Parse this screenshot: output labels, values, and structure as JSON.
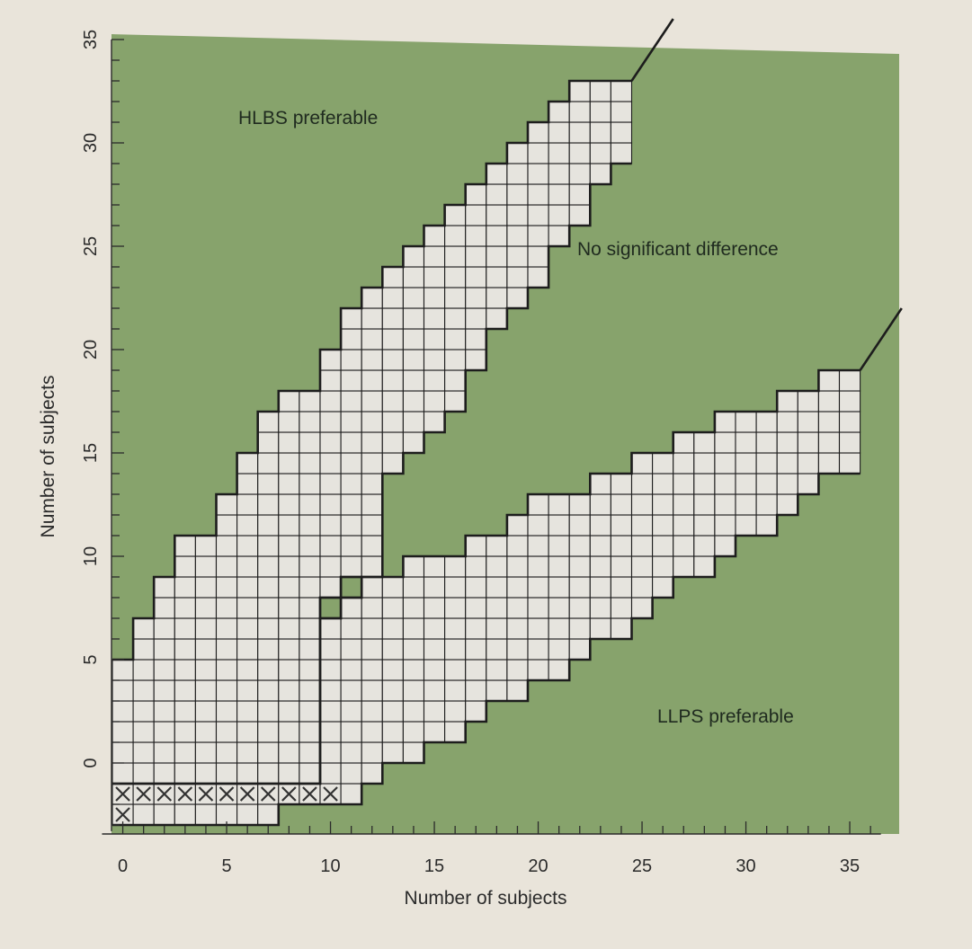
{
  "chart_data": {
    "type": "heatmap",
    "title": "",
    "xlabel": "Number of subjects",
    "ylabel": "Number of subjects",
    "xlim": [
      -0.5,
      37
    ],
    "ylim": [
      -3.3,
      35
    ],
    "x_ticks": [
      "0",
      "5",
      "10",
      "15",
      "20",
      "25",
      "30",
      "35"
    ],
    "y_ticks": [
      "0",
      "5",
      "10",
      "15",
      "20",
      "25",
      "30",
      "35"
    ],
    "region_labels": {
      "upper": "HLBS preferable",
      "middle": "No significant difference",
      "lower": "LLPS preferable"
    },
    "upper_band_columns": [
      {
        "x": 0,
        "bottom": -1,
        "top": 5
      },
      {
        "x": 1,
        "bottom": -1,
        "top": 7
      },
      {
        "x": 2,
        "bottom": -1,
        "top": 9
      },
      {
        "x": 3,
        "bottom": -1,
        "top": 11
      },
      {
        "x": 4,
        "bottom": -1,
        "top": 11
      },
      {
        "x": 5,
        "bottom": -1,
        "top": 13
      },
      {
        "x": 6,
        "bottom": -1,
        "top": 15
      },
      {
        "x": 7,
        "bottom": -1,
        "top": 17
      },
      {
        "x": 8,
        "bottom": -1,
        "top": 18
      },
      {
        "x": 9,
        "bottom": -1,
        "top": 18
      },
      {
        "x": 10,
        "bottom": 8,
        "top": 20
      },
      {
        "x": 11,
        "bottom": 9,
        "top": 22
      },
      {
        "x": 12,
        "bottom": 9,
        "top": 23
      },
      {
        "x": 13,
        "bottom": 14,
        "top": 24
      },
      {
        "x": 14,
        "bottom": 15,
        "top": 25
      },
      {
        "x": 15,
        "bottom": 16,
        "top": 26
      },
      {
        "x": 16,
        "bottom": 17,
        "top": 27
      },
      {
        "x": 17,
        "bottom": 19,
        "top": 28
      },
      {
        "x": 18,
        "bottom": 21,
        "top": 29
      },
      {
        "x": 19,
        "bottom": 22,
        "top": 30
      },
      {
        "x": 20,
        "bottom": 23,
        "top": 31
      },
      {
        "x": 21,
        "bottom": 25,
        "top": 32
      },
      {
        "x": 22,
        "bottom": 26,
        "top": 33
      },
      {
        "x": 23,
        "bottom": 28,
        "top": 33
      },
      {
        "x": 24,
        "bottom": 29,
        "top": 33
      }
    ],
    "lower_band_columns": [
      {
        "x": 0,
        "bottom": -3,
        "top": -1
      },
      {
        "x": 1,
        "bottom": -3,
        "top": -1
      },
      {
        "x": 2,
        "bottom": -3,
        "top": -1
      },
      {
        "x": 3,
        "bottom": -3,
        "top": -1
      },
      {
        "x": 4,
        "bottom": -3,
        "top": -1
      },
      {
        "x": 5,
        "bottom": -3,
        "top": -1
      },
      {
        "x": 6,
        "bottom": -3,
        "top": -1
      },
      {
        "x": 7,
        "bottom": -3,
        "top": -1
      },
      {
        "x": 8,
        "bottom": -2,
        "top": -1
      },
      {
        "x": 9,
        "bottom": -2,
        "top": -1
      },
      {
        "x": 10,
        "bottom": -2,
        "top": 7
      },
      {
        "x": 11,
        "bottom": -2,
        "top": 8
      },
      {
        "x": 12,
        "bottom": -1,
        "top": 9
      },
      {
        "x": 13,
        "bottom": 0,
        "top": 9
      },
      {
        "x": 14,
        "bottom": 0,
        "top": 10
      },
      {
        "x": 15,
        "bottom": 1,
        "top": 10
      },
      {
        "x": 16,
        "bottom": 1,
        "top": 10
      },
      {
        "x": 17,
        "bottom": 2,
        "top": 11
      },
      {
        "x": 18,
        "bottom": 3,
        "top": 11
      },
      {
        "x": 19,
        "bottom": 3,
        "top": 12
      },
      {
        "x": 20,
        "bottom": 4,
        "top": 13
      },
      {
        "x": 21,
        "bottom": 4,
        "top": 13
      },
      {
        "x": 22,
        "bottom": 5,
        "top": 13
      },
      {
        "x": 23,
        "bottom": 6,
        "top": 14
      },
      {
        "x": 24,
        "bottom": 6,
        "top": 14
      },
      {
        "x": 25,
        "bottom": 7,
        "top": 15
      },
      {
        "x": 26,
        "bottom": 8,
        "top": 15
      },
      {
        "x": 27,
        "bottom": 9,
        "top": 16
      },
      {
        "x": 28,
        "bottom": 9,
        "top": 16
      },
      {
        "x": 29,
        "bottom": 10,
        "top": 17
      },
      {
        "x": 30,
        "bottom": 11,
        "top": 17
      },
      {
        "x": 31,
        "bottom": 11,
        "top": 17
      },
      {
        "x": 32,
        "bottom": 12,
        "top": 18
      },
      {
        "x": 33,
        "bottom": 13,
        "top": 18
      },
      {
        "x": 34,
        "bottom": 14,
        "top": 19
      },
      {
        "x": 35,
        "bottom": 14,
        "top": 19
      }
    ],
    "notch_cells": [
      {
        "x": 10,
        "y": 7
      },
      {
        "x": 11,
        "y": 8
      }
    ],
    "x_marked_cells": [
      {
        "x": 0,
        "y": -2
      },
      {
        "x": 0,
        "y": -3
      },
      {
        "x": 1,
        "y": -2
      },
      {
        "x": 2,
        "y": -2
      },
      {
        "x": 3,
        "y": -2
      },
      {
        "x": 4,
        "y": -2
      },
      {
        "x": 5,
        "y": -2
      },
      {
        "x": 6,
        "y": -2
      },
      {
        "x": 7,
        "y": -2
      },
      {
        "x": 8,
        "y": -2
      },
      {
        "x": 9,
        "y": -2
      },
      {
        "x": 10,
        "y": -2
      }
    ],
    "boundary_extensions": [
      {
        "from": [
          25,
          33
        ],
        "to": [
          27,
          36
        ]
      },
      {
        "from": [
          36,
          19
        ],
        "to": [
          38,
          22
        ]
      }
    ],
    "colors": {
      "region_fill": "#87a36c",
      "cell_fill": "#e6e4de",
      "grid_line": "#1d1d1d",
      "page": "#e9e4da"
    }
  }
}
